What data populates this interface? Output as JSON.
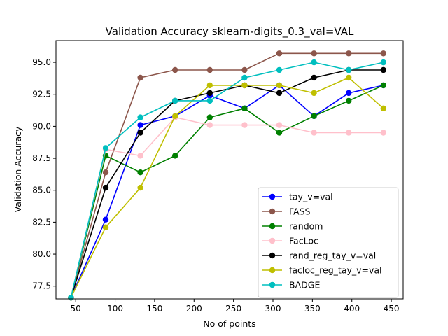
{
  "chart_data": {
    "type": "line",
    "title": "Validation Accuracy sklearn-digits_0.3_val=VAL",
    "xlabel": "No of points",
    "ylabel": "Validation Accuracy",
    "xlim": [
      25,
      465
    ],
    "ylim": [
      76.5,
      96.7
    ],
    "xticks": [
      50,
      100,
      150,
      200,
      250,
      300,
      350,
      400,
      450
    ],
    "yticks": [
      77.5,
      80.0,
      82.5,
      85.0,
      87.5,
      90.0,
      92.5,
      95.0
    ],
    "ytick_labels": [
      "77.5",
      "80.0",
      "82.5",
      "85.0",
      "87.5",
      "90.0",
      "92.5",
      "95.0"
    ],
    "grid": false,
    "legend_position": "lower-right",
    "x": [
      44,
      88,
      132,
      176,
      220,
      264,
      308,
      352,
      396,
      440
    ],
    "series": [
      {
        "name": "tay_v=val",
        "color": "#0000ff",
        "values": [
          76.6,
          82.7,
          90.1,
          90.8,
          92.4,
          91.4,
          93.2,
          90.8,
          92.6,
          93.2
        ]
      },
      {
        "name": "FASS",
        "color": "#8c564b",
        "values": [
          76.6,
          86.4,
          93.8,
          94.4,
          94.4,
          94.4,
          95.7,
          95.7,
          95.7,
          95.7
        ]
      },
      {
        "name": "random",
        "color": "#008000",
        "values": [
          76.6,
          87.7,
          86.4,
          87.7,
          90.7,
          91.4,
          89.5,
          90.8,
          92.0,
          93.2
        ]
      },
      {
        "name": "FacLoc",
        "color": "#ffc0cb",
        "values": [
          76.6,
          88.2,
          87.7,
          90.7,
          90.1,
          90.1,
          90.1,
          89.5,
          89.5,
          89.5
        ]
      },
      {
        "name": "rand_reg_tay_v=val",
        "color": "#000000",
        "values": [
          76.6,
          85.2,
          89.5,
          92.0,
          92.6,
          93.2,
          92.6,
          93.8,
          94.4,
          94.4
        ]
      },
      {
        "name": "facloc_reg_tay_v=val",
        "color": "#bfbf00",
        "values": [
          76.6,
          82.1,
          85.2,
          90.8,
          93.2,
          93.2,
          93.2,
          92.6,
          93.8,
          91.4
        ]
      },
      {
        "name": "BADGE",
        "color": "#00bfbf",
        "values": [
          76.6,
          88.3,
          90.7,
          92.0,
          92.0,
          93.8,
          94.4,
          95.0,
          94.4,
          95.0
        ]
      }
    ]
  }
}
